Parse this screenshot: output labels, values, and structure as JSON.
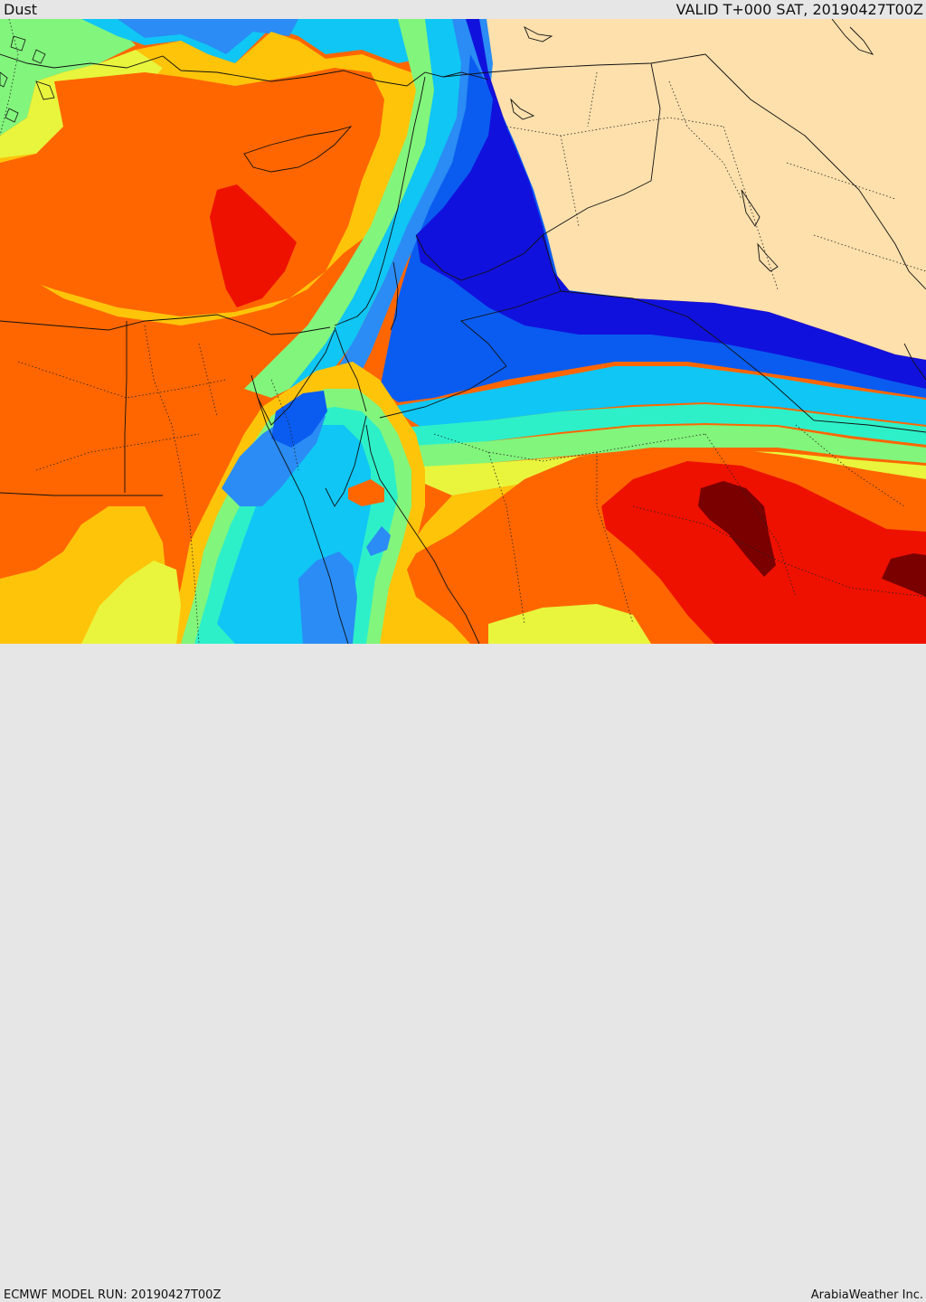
{
  "header": {
    "title": "Dust",
    "valid": "VALID T+000 SAT, 20190427T00Z"
  },
  "footer": {
    "run": "ECMWF MODEL RUN: 20190427T00Z",
    "credit": "ArabiaWeather Inc."
  },
  "colors": {
    "land": "#fde0ac",
    "c1": "#1111dd",
    "c2": "#0a5cf0",
    "c3": "#2a8cf4",
    "c4": "#0fc6f5",
    "c5": "#2df0c8",
    "c6": "#82f57c",
    "c7": "#e8f53c",
    "c8": "#fec40a",
    "c9": "#ff6600",
    "c10": "#ee1100",
    "c11": "#7a0000"
  }
}
